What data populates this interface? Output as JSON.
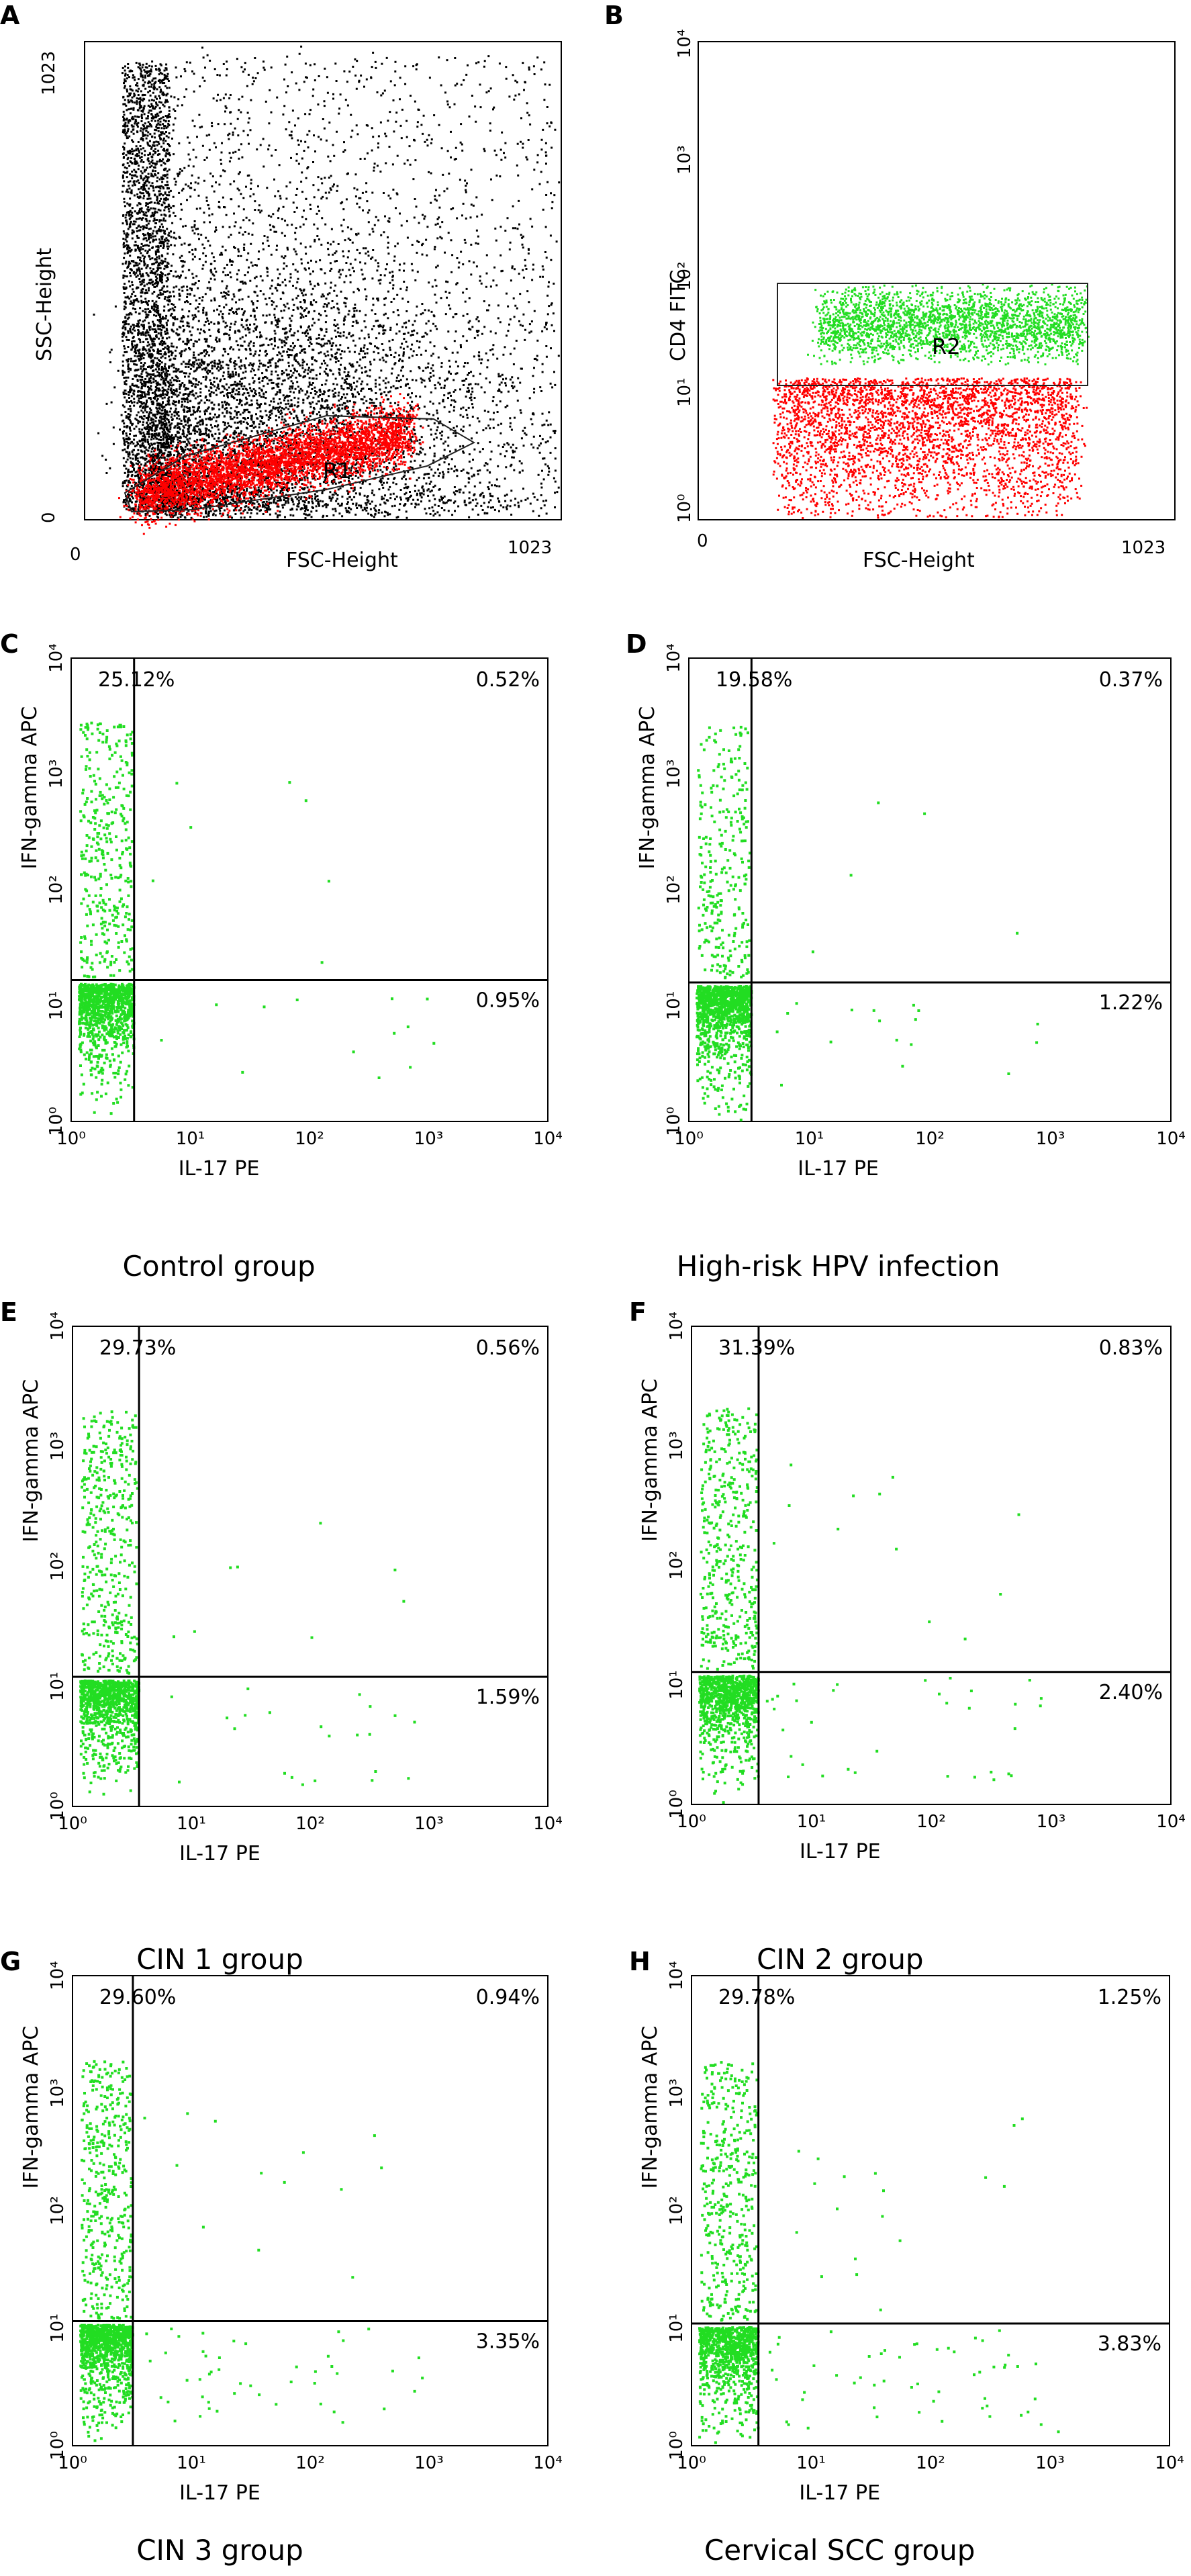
{
  "figure": {
    "panels": [
      {
        "letter": "A",
        "xlabel": "FSC-Height",
        "ylabel": "SSC-Height",
        "x_ticks": [
          "0",
          "1023"
        ],
        "y_ticks": [
          "0",
          "1023"
        ],
        "gate_label": "R1",
        "caption": ""
      },
      {
        "letter": "B",
        "xlabel": "FSC-Height",
        "ylabel": "CD4 FITC",
        "x_ticks": [
          "0",
          "1023"
        ],
        "y_ticks": [
          "10⁰",
          "10¹",
          "10²",
          "10³",
          "10⁴"
        ],
        "gate_label": "R2",
        "caption": ""
      },
      {
        "letter": "C",
        "xlabel": "IL-17 PE",
        "ylabel": "IFN-gamma APC",
        "caption": "Control group",
        "ul": "25.12%",
        "ur": "0.52%",
        "lr": "0.95%"
      },
      {
        "letter": "D",
        "xlabel": "IL-17 PE",
        "ylabel": "IFN-gamma APC",
        "caption": "High-risk HPV infection",
        "ul": "19.58%",
        "ur": "0.37%",
        "lr": "1.22%"
      },
      {
        "letter": "E",
        "xlabel": "IL-17 PE",
        "ylabel": "IFN-gamma APC",
        "caption": "CIN 1 group",
        "ul": "29.73%",
        "ur": "0.56%",
        "lr": "1.59%"
      },
      {
        "letter": "F",
        "xlabel": "IL-17 PE",
        "ylabel": "IFN-gamma APC",
        "caption": "CIN 2 group",
        "ul": "31.39%",
        "ur": "0.83%",
        "lr": "2.40%"
      },
      {
        "letter": "G",
        "xlabel": "IL-17 PE",
        "ylabel": "IFN-gamma APC",
        "caption": "CIN 3 group",
        "ul": "29.60%",
        "ur": "0.94%",
        "lr": "3.35%"
      },
      {
        "letter": "H",
        "xlabel": "IL-17 PE",
        "ylabel": "IFN-gamma APC",
        "caption": "Cervical SCC group",
        "ul": "29.78%",
        "ur": "1.25%",
        "lr": "3.83%"
      }
    ],
    "log_ticks": [
      "10⁰",
      "10¹",
      "10²",
      "10³",
      "10⁴"
    ],
    "colors": {
      "lymphocytes": "#ff0000",
      "cd4": "#22dd22",
      "events": "#000000",
      "frame": "#000000"
    }
  },
  "chart_data": [
    {
      "type": "scatter",
      "panel": "A",
      "xlabel": "FSC-Height",
      "ylabel": "SSC-Height",
      "xlim": [
        0,
        1023
      ],
      "ylim": [
        0,
        1023
      ],
      "gate": "R1",
      "scale": "linear"
    },
    {
      "type": "scatter",
      "panel": "B",
      "xlabel": "FSC-Height",
      "ylabel": "CD4 FITC",
      "xlim": [
        0,
        1023
      ],
      "ylim": [
        1,
        10000
      ],
      "yscale": "log",
      "gate": "R2"
    },
    {
      "type": "scatter",
      "panel": "C",
      "title": "Control group",
      "xlabel": "IL-17 PE",
      "ylabel": "IFN-gamma APC",
      "xlim": [
        1,
        10000
      ],
      "ylim": [
        1,
        10000
      ],
      "xscale": "log",
      "yscale": "log",
      "quadrants": {
        "upper_left": 25.12,
        "upper_right": 0.52,
        "lower_right": 0.95
      }
    },
    {
      "type": "scatter",
      "panel": "D",
      "title": "High-risk HPV infection",
      "xlabel": "IL-17 PE",
      "ylabel": "IFN-gamma APC",
      "xlim": [
        1,
        10000
      ],
      "ylim": [
        1,
        10000
      ],
      "xscale": "log",
      "yscale": "log",
      "quadrants": {
        "upper_left": 19.58,
        "upper_right": 0.37,
        "lower_right": 1.22
      }
    },
    {
      "type": "scatter",
      "panel": "E",
      "title": "CIN 1 group",
      "xlabel": "IL-17 PE",
      "ylabel": "IFN-gamma APC",
      "xlim": [
        1,
        10000
      ],
      "ylim": [
        1,
        10000
      ],
      "xscale": "log",
      "yscale": "log",
      "quadrants": {
        "upper_left": 29.73,
        "upper_right": 0.56,
        "lower_right": 1.59
      }
    },
    {
      "type": "scatter",
      "panel": "F",
      "title": "CIN 2 group",
      "xlabel": "IL-17 PE",
      "ylabel": "IFN-gamma APC",
      "xlim": [
        1,
        10000
      ],
      "ylim": [
        1,
        10000
      ],
      "xscale": "log",
      "yscale": "log",
      "quadrants": {
        "upper_left": 31.39,
        "upper_right": 0.83,
        "lower_right": 2.4
      }
    },
    {
      "type": "scatter",
      "panel": "G",
      "title": "CIN 3 group",
      "xlabel": "IL-17 PE",
      "ylabel": "IFN-gamma APC",
      "xlim": [
        1,
        10000
      ],
      "ylim": [
        1,
        10000
      ],
      "xscale": "log",
      "yscale": "log",
      "quadrants": {
        "upper_left": 29.6,
        "upper_right": 0.94,
        "lower_right": 3.35
      }
    },
    {
      "type": "scatter",
      "panel": "H",
      "title": "Cervical SCC group",
      "xlabel": "IL-17 PE",
      "ylabel": "IFN-gamma APC",
      "xlim": [
        1,
        10000
      ],
      "ylim": [
        1,
        10000
      ],
      "xscale": "log",
      "yscale": "log",
      "quadrants": {
        "upper_left": 29.78,
        "upper_right": 1.25,
        "lower_right": 3.83
      }
    }
  ]
}
